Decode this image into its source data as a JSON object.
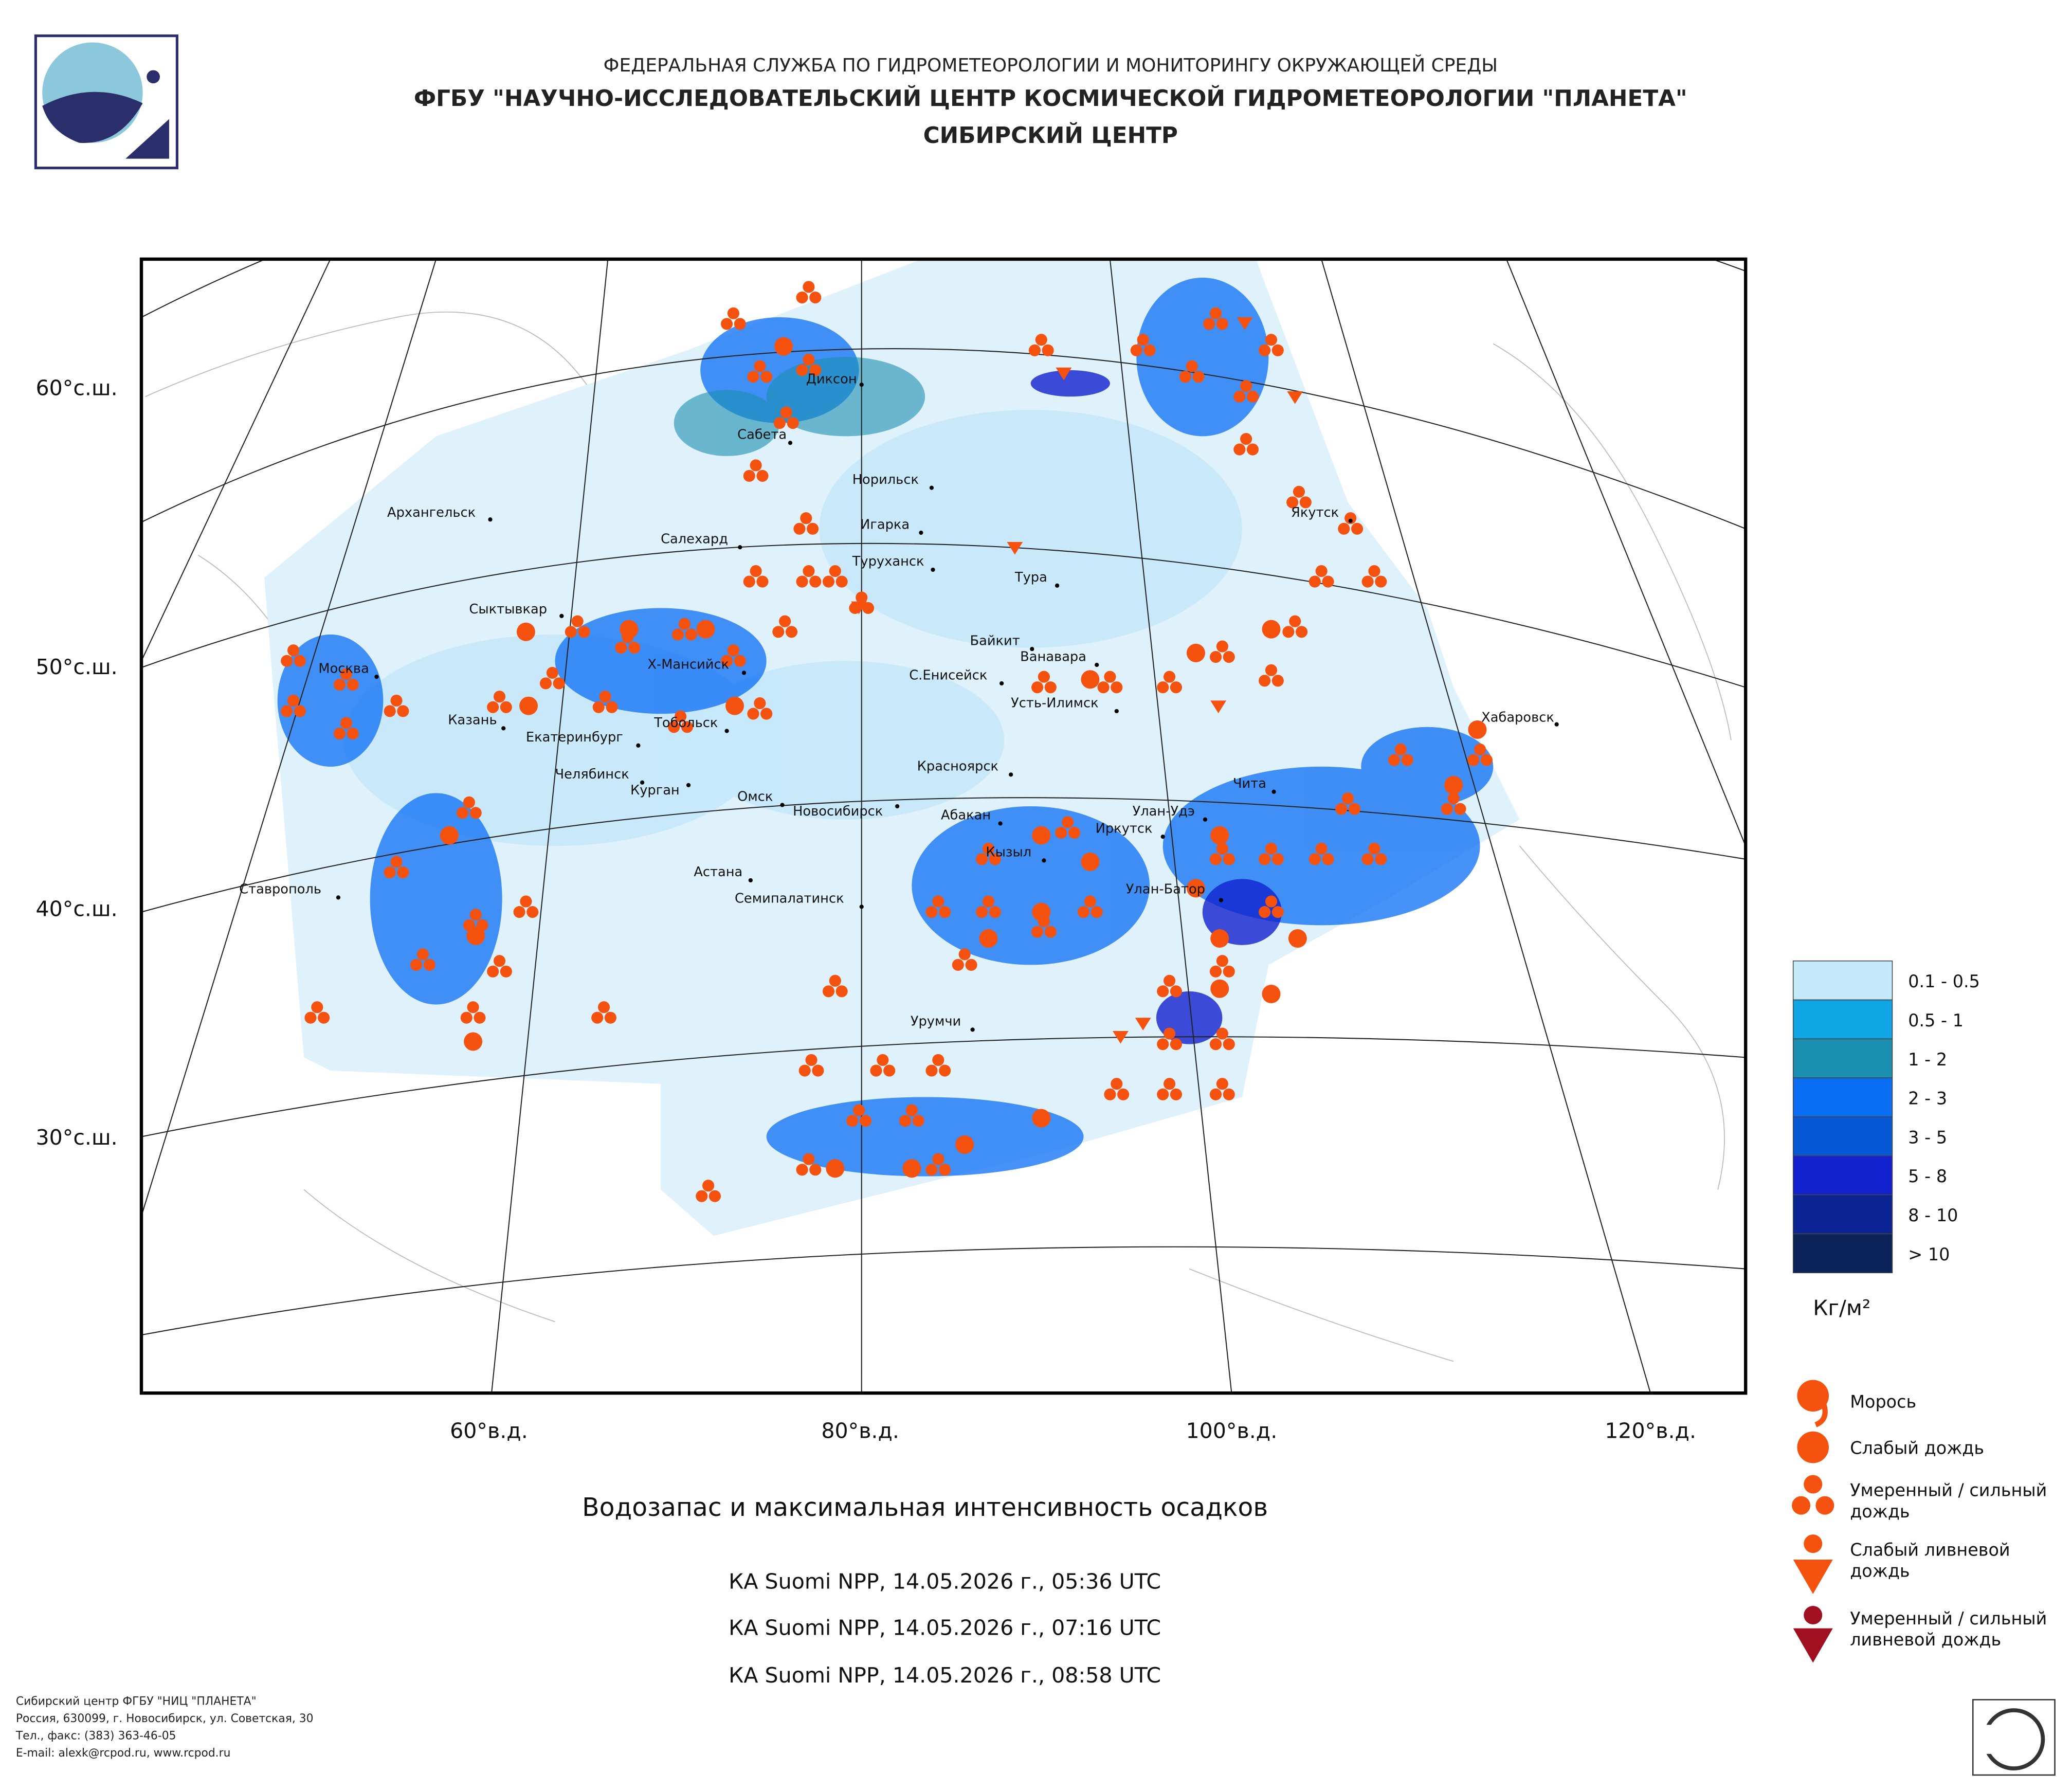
{
  "header": {
    "agency": "ФЕДЕРАЛЬНАЯ СЛУЖБА ПО ГИДРОМЕТЕОРОЛОГИИ И МОНИТОРИНГУ ОКРУЖАЮЩЕЙ СРЕДЫ",
    "institute": "ФГБУ \"НАУЧНО-ИССЛЕДОВАТЕЛЬСКИЙ ЦЕНТР КОСМИЧЕСКОЙ ГИДРОМЕТЕОРОЛОГИИ \"ПЛАНЕТА\"",
    "center": "СИБИРСКИЙ ЦЕНТР"
  },
  "map": {
    "latitudes": [
      "60°с.ш.",
      "50°с.ш.",
      "40°с.ш.",
      "30°с.ш."
    ],
    "longitudes": [
      "60°в.д.",
      "80°в.д.",
      "100°в.д.",
      "120°в.д."
    ],
    "cities": [
      "Диксон",
      "Сабета",
      "Норильск",
      "Архангельск",
      "Игарка",
      "Салехард",
      "Туруханск",
      "Тура",
      "Сыктывкар",
      "Байкит",
      "Ванавара",
      "Х-Мансийск",
      "Москва",
      "С.Енисейск",
      "Усть-Илимск",
      "Казань",
      "Тобольск",
      "Хабаровск",
      "Екатеринбург",
      "Красноярск",
      "Челябинск",
      "Чита",
      "Курган",
      "Омск",
      "Новосибирск",
      "Абакан",
      "Улан-Удэ",
      "Иркутск",
      "Кызыл",
      "Астана",
      "Ставрополь",
      "Улан-Батор",
      "Семипалатинск",
      "Якутск",
      "Урумчи"
    ]
  },
  "legend": {
    "classes": [
      {
        "label": "0.1 - 0.5",
        "color": "#c6e8fb"
      },
      {
        "label": "0.5 - 1",
        "color": "#10a6e6"
      },
      {
        "label": "1 - 2",
        "color": "#1a8fb0"
      },
      {
        "label": "2 - 3",
        "color": "#0a6ef5"
      },
      {
        "label": "3 - 5",
        "color": "#0858d6"
      },
      {
        "label": "5 - 8",
        "color": "#1222cf"
      },
      {
        "label": "8 - 10",
        "color": "#0c2394"
      },
      {
        "label": "> 10",
        "color": "#0b2358"
      }
    ],
    "unit": "Кг/м²",
    "precipitation": [
      [
        "Морось"
      ],
      [
        "Слабый дождь"
      ],
      [
        "Умеренный / сильный",
        "дождь"
      ],
      [
        "Слабый ливневой",
        "дождь"
      ],
      [
        "Умеренный / сильный",
        "ливневой дождь"
      ]
    ]
  },
  "caption": {
    "title": "Водозапас и максимальная интенсивность осадков",
    "passes": [
      "КА Suomi NPP, 14.05.2026 г., 05:36 UTC",
      "КА Suomi NPP, 14.05.2026 г., 07:16 UTC",
      "КА Suomi NPP, 14.05.2026 г., 08:58 UTC"
    ]
  },
  "footer": [
    "Сибирский центр ФГБУ \"НИЦ \"ПЛАНЕТА\"",
    "Россия, 630099, г. Новосибирск, ул. Советская, 30",
    "Тел., факс: (383) 363-46-05",
    "E-mail: alexk@rcpod.ru, www.rcpod.ru"
  ]
}
